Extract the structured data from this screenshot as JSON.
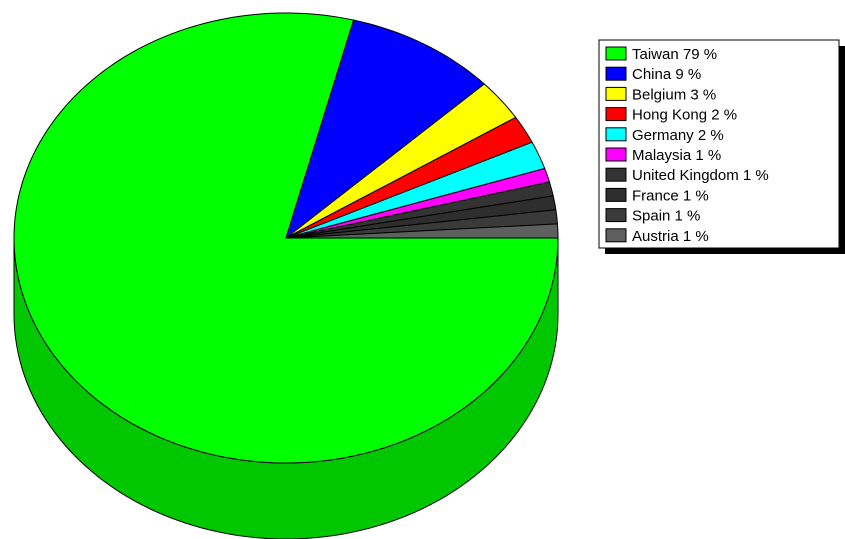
{
  "chart_data": {
    "type": "pie",
    "style": "3d",
    "legend_position": "top-right",
    "slices": [
      {
        "label": "Taiwan",
        "value": 79,
        "display": "Taiwan  79 %",
        "color": "#00ff00"
      },
      {
        "label": "China",
        "value": 9,
        "display": "China  9 %",
        "color": "#0000ff"
      },
      {
        "label": "Belgium",
        "value": 3,
        "display": "Belgium  3 %",
        "color": "#ffff00"
      },
      {
        "label": "Hong Kong",
        "value": 2,
        "display": "Hong Kong  2 %",
        "color": "#ff0000"
      },
      {
        "label": "Germany",
        "value": 2,
        "display": "Germany  2 %",
        "color": "#00ffff"
      },
      {
        "label": "Malaysia",
        "value": 1,
        "display": "Malaysia  1 %",
        "color": "#ff00ff"
      },
      {
        "label": "United Kingdom",
        "value": 1,
        "display": "United Kingdom  1 %",
        "color": "#333333"
      },
      {
        "label": "France",
        "value": 1,
        "display": "France  1 %",
        "color": "#2e2e2e"
      },
      {
        "label": "Spain",
        "value": 1,
        "display": "Spain  1 %",
        "color": "#3a3a3a"
      },
      {
        "label": "Austria",
        "value": 1,
        "display": "Austria  1 %",
        "color": "#5f5f5f"
      }
    ]
  }
}
